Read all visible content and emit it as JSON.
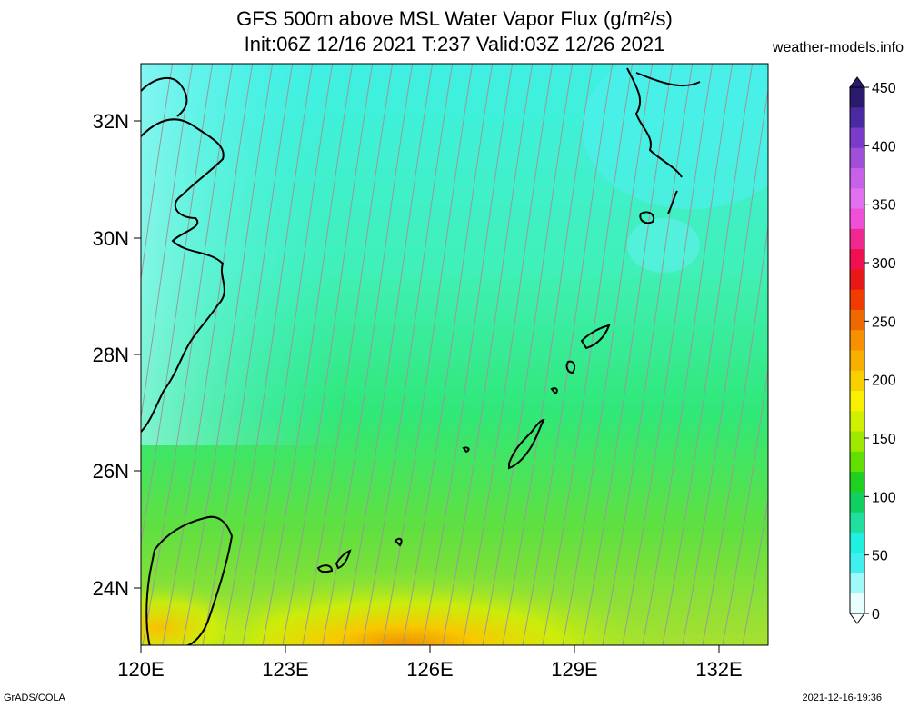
{
  "title_line1": "GFS 500m above MSL Water Vapor Flux (g/m²/s)",
  "title_line2": "Init:06Z 12/16 2021 T:237 Valid:03Z 12/26 2021",
  "site": "weather-models.info",
  "footer_left": "GrADS/COLA",
  "footer_right": "2021-12-16-19:36",
  "lat_labels": [
    "32N",
    "30N",
    "28N",
    "26N",
    "24N"
  ],
  "lon_labels": [
    "120E",
    "123E",
    "126E",
    "129E",
    "132E"
  ],
  "colorbar": {
    "labels": [
      "450",
      "400",
      "350",
      "300",
      "250",
      "200",
      "150",
      "100",
      "50",
      "0"
    ],
    "colors": [
      "#2a1a6e",
      "#4a2aa0",
      "#7a3cc8",
      "#a050d8",
      "#c860e8",
      "#e070f0",
      "#f050d8",
      "#f02890",
      "#f01050",
      "#e81818",
      "#f03c00",
      "#f06800",
      "#f89000",
      "#f8b000",
      "#f8d000",
      "#f8f000",
      "#d0f000",
      "#a0e800",
      "#60e000",
      "#20d020",
      "#10d060",
      "#20e0a0",
      "#20f0e0",
      "#40f0f0",
      "#a0f8f8",
      "#e8ffff"
    ]
  },
  "colors": {
    "coast": "#000000",
    "streamline": "#999999",
    "ocean_base": "#48f0d8"
  }
}
